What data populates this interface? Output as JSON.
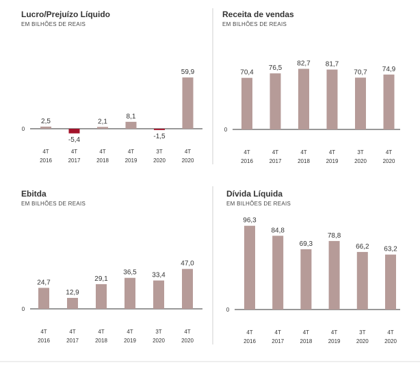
{
  "colors": {
    "bar": "#b69b98",
    "negative": "#a3122a",
    "axis": "#777777",
    "divider": "#cfcfcf"
  },
  "chart_data": [
    {
      "type": "bar",
      "title": "Lucro/Prejuízo Líquido",
      "subtitle": "EM BILHÕES DE REAIS",
      "categories": [
        [
          "4T",
          "2016"
        ],
        [
          "4T",
          "2017"
        ],
        [
          "4T",
          "2018"
        ],
        [
          "4T",
          "2019"
        ],
        [
          "3T",
          "2020"
        ],
        [
          "4T",
          "2020"
        ]
      ],
      "values": [
        2.5,
        -5.4,
        2.1,
        8.1,
        -1.5,
        59.9
      ],
      "value_labels": [
        "2,5",
        "-5,4",
        "2,1",
        "8,1",
        "-1,5",
        "59,9"
      ],
      "zero_label": "0",
      "ylim": [
        -10,
        70
      ],
      "grid": false
    },
    {
      "type": "bar",
      "title": "Receita de vendas",
      "subtitle": "EM BILHÕES DE REAIS",
      "categories": [
        [
          "4T",
          "2016"
        ],
        [
          "4T",
          "2017"
        ],
        [
          "4T",
          "2018"
        ],
        [
          "4T",
          "2019"
        ],
        [
          "3T",
          "2020"
        ],
        [
          "4T",
          "2020"
        ]
      ],
      "values": [
        70.4,
        76.5,
        82.7,
        81.7,
        70.7,
        74.9
      ],
      "value_labels": [
        "70,4",
        "76,5",
        "82,7",
        "81,7",
        "70,7",
        "74,9"
      ],
      "zero_label": "0",
      "ylim": [
        0,
        95
      ],
      "grid": false
    },
    {
      "type": "bar",
      "title": "Ebitda",
      "subtitle": "EM BILHÕES DE REAIS",
      "categories": [
        [
          "4T",
          "2016"
        ],
        [
          "4T",
          "2017"
        ],
        [
          "4T",
          "2018"
        ],
        [
          "4T",
          "2019"
        ],
        [
          "3T",
          "2020"
        ],
        [
          "4T",
          "2020"
        ]
      ],
      "values": [
        24.7,
        12.9,
        29.1,
        36.5,
        33.4,
        47.0
      ],
      "value_labels": [
        "24,7",
        "12,9",
        "29,1",
        "36,5",
        "33,4",
        "47,0"
      ],
      "zero_label": "0",
      "ylim": [
        0,
        95
      ],
      "grid": false
    },
    {
      "type": "bar",
      "title": "Dívida Líquida",
      "subtitle": "EM BILHÕES DE REAIS",
      "categories": [
        [
          "4T",
          "2016"
        ],
        [
          "4T",
          "2017"
        ],
        [
          "4T",
          "2018"
        ],
        [
          "4T",
          "2019"
        ],
        [
          "3T",
          "2020"
        ],
        [
          "4T",
          "2020"
        ]
      ],
      "values": [
        96.3,
        84.8,
        69.3,
        78.8,
        66.2,
        63.2
      ],
      "value_labels": [
        "96,3",
        "84,8",
        "69,3",
        "78,8",
        "66,2",
        "63,2"
      ],
      "zero_label": "0",
      "ylim": [
        0,
        100
      ],
      "grid": false
    }
  ]
}
